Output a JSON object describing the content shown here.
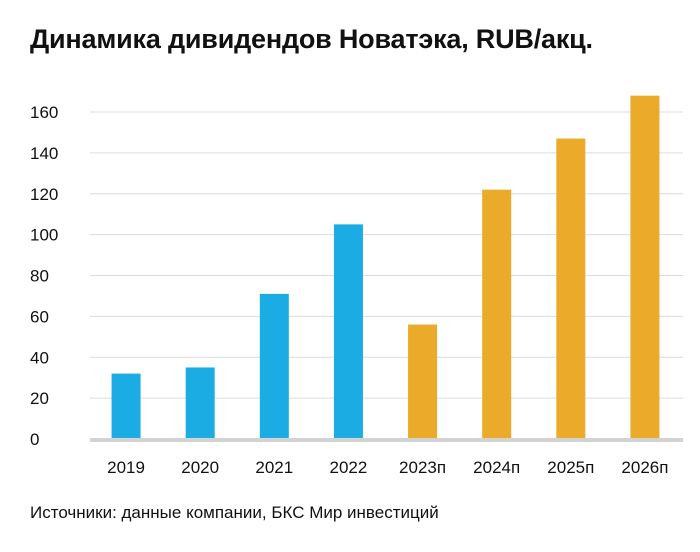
{
  "chart_data": {
    "type": "bar",
    "title": "Динамика дивидендов Новатэка, RUB/акц.",
    "categories": [
      "2019",
      "2020",
      "2021",
      "2022",
      "2023п",
      "2024п",
      "2025п",
      "2026п"
    ],
    "values": [
      32,
      35,
      71,
      105,
      56,
      122,
      147,
      168
    ],
    "series_type": [
      "actual",
      "actual",
      "actual",
      "actual",
      "forecast",
      "forecast",
      "forecast",
      "forecast"
    ],
    "colors": {
      "actual": "#1AACE2",
      "forecast": "#EBAA2A"
    },
    "xlabel": "",
    "ylabel": "",
    "ylim": [
      0,
      160
    ],
    "yticks": [
      0,
      20,
      40,
      60,
      80,
      100,
      120,
      140,
      160
    ],
    "grid": true,
    "source": "Источники: данные компании, БКС Мир инвестиций"
  }
}
